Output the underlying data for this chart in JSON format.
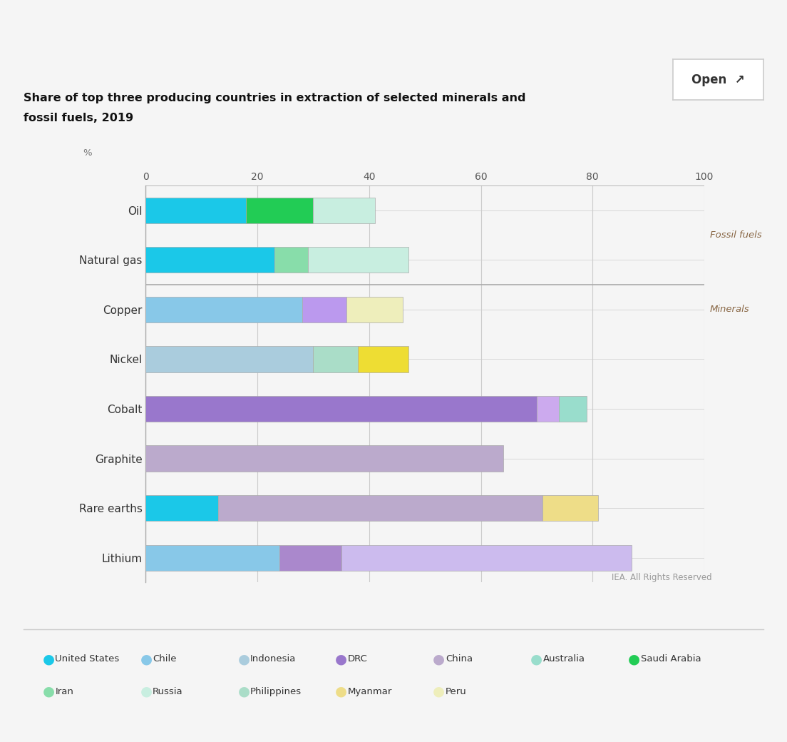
{
  "title_line1": "Share of top three producing countries in extraction of selected minerals and",
  "title_line2": "fossil fuels, 2019",
  "iea_text": "IEA. All Rights Reserved",
  "bars": [
    {
      "name": "Oil",
      "segments": [
        {
          "country": "United States",
          "value": 18,
          "color": "#1BC8E8"
        },
        {
          "country": "Saudi Arabia",
          "value": 12,
          "color": "#22CC55"
        },
        {
          "country": "Russia",
          "value": 11,
          "color": "#C8EEE0"
        }
      ]
    },
    {
      "name": "Natural gas",
      "segments": [
        {
          "country": "United States",
          "value": 23,
          "color": "#1BC8E8"
        },
        {
          "country": "Iran",
          "value": 6,
          "color": "#88DDAA"
        },
        {
          "country": "Russia",
          "value": 18,
          "color": "#C8EEE0"
        }
      ]
    },
    {
      "name": "Copper",
      "segments": [
        {
          "country": "Chile",
          "value": 28,
          "color": "#88C8E8"
        },
        {
          "country": "China",
          "value": 8,
          "color": "#BB99EE"
        },
        {
          "country": "Peru",
          "value": 10,
          "color": "#EEEEBB"
        }
      ]
    },
    {
      "name": "Nickel",
      "segments": [
        {
          "country": "Indonesia",
          "value": 30,
          "color": "#AACCDD"
        },
        {
          "country": "Philippines",
          "value": 8,
          "color": "#AADDC8"
        },
        {
          "country": "Russia",
          "value": 9,
          "color": "#EEDD33"
        }
      ]
    },
    {
      "name": "Cobalt",
      "segments": [
        {
          "country": "DRC",
          "value": 70,
          "color": "#9977CC"
        },
        {
          "country": "China",
          "value": 4,
          "color": "#CCAAEE"
        },
        {
          "country": "Australia",
          "value": 5,
          "color": "#99DDCC"
        }
      ]
    },
    {
      "name": "Graphite",
      "segments": [
        {
          "country": "China",
          "value": 64,
          "color": "#BBAACC"
        }
      ]
    },
    {
      "name": "Rare earths",
      "segments": [
        {
          "country": "United States",
          "value": 13,
          "color": "#1BC8E8"
        },
        {
          "country": "China",
          "value": 58,
          "color": "#BBAACC"
        },
        {
          "country": "Myanmar",
          "value": 10,
          "color": "#EEDD88"
        }
      ]
    },
    {
      "name": "Lithium",
      "segments": [
        {
          "country": "Australia",
          "value": 24,
          "color": "#88C8E8"
        },
        {
          "country": "Chile",
          "value": 11,
          "color": "#AA88CC"
        },
        {
          "country": "China",
          "value": 52,
          "color": "#CCBBEE"
        }
      ]
    }
  ],
  "legend_row1": [
    {
      "label": "United States",
      "color": "#1BC8E8"
    },
    {
      "label": "Chile",
      "color": "#88C8E8"
    },
    {
      "label": "Indonesia",
      "color": "#AACCDD"
    },
    {
      "label": "DRC",
      "color": "#9977CC"
    },
    {
      "label": "China",
      "color": "#BBAACC"
    },
    {
      "label": "Australia",
      "color": "#99DDCC"
    },
    {
      "label": "Saudi Arabia",
      "color": "#22CC55"
    }
  ],
  "legend_row2": [
    {
      "label": "Iran",
      "color": "#88DDAA"
    },
    {
      "label": "Russia",
      "color": "#C8EEE0"
    },
    {
      "label": "Philippines",
      "color": "#AADDC8"
    },
    {
      "label": "Myanmar",
      "color": "#EEDD88"
    },
    {
      "label": "Peru",
      "color": "#EEEEBB"
    }
  ]
}
